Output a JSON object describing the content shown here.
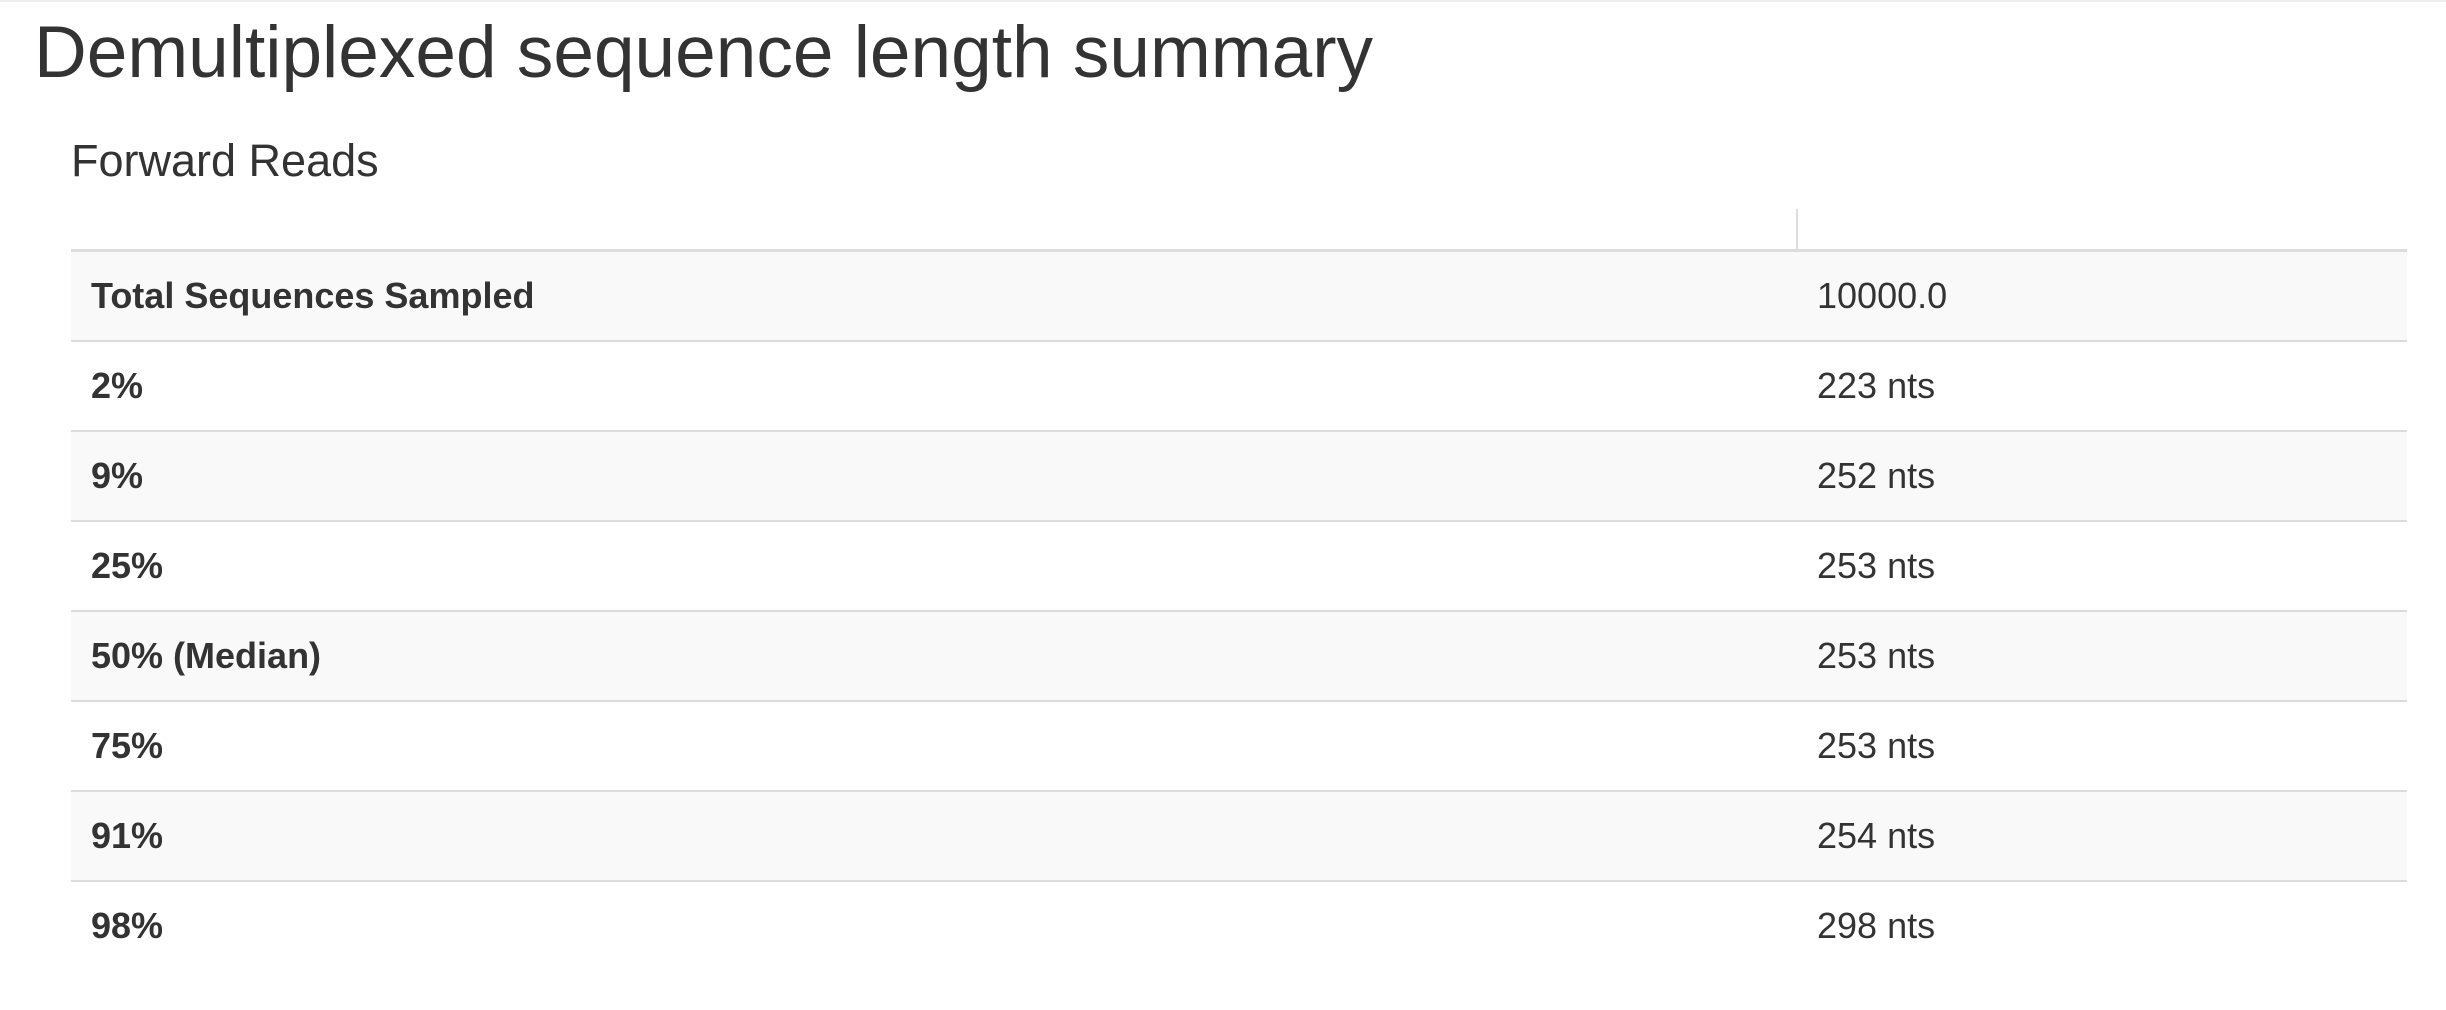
{
  "page": {
    "title": "Demultiplexed sequence length summary"
  },
  "section": {
    "title": "Forward Reads"
  },
  "table": {
    "headers": [
      "",
      ""
    ],
    "rows": [
      {
        "label": "Total Sequences Sampled",
        "value": "10000.0"
      },
      {
        "label": "2%",
        "value": "223 nts"
      },
      {
        "label": "9%",
        "value": "252 nts"
      },
      {
        "label": "25%",
        "value": "253 nts"
      },
      {
        "label": "50% (Median)",
        "value": "253 nts"
      },
      {
        "label": "75%",
        "value": "253 nts"
      },
      {
        "label": "91%",
        "value": "254 nts"
      },
      {
        "label": "98%",
        "value": "298 nts"
      }
    ]
  },
  "colors": {
    "text": "#333333",
    "row_stripe": "#f9f9f9",
    "border": "#dddddd",
    "background": "#ffffff"
  }
}
